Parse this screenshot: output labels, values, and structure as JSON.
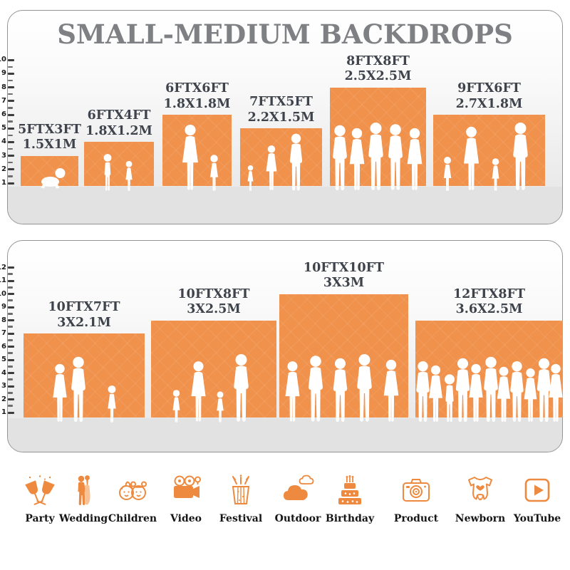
{
  "title": "SMALL-MEDIUM BACKDROPS",
  "colors": {
    "backdrop_orange": "#F0914C",
    "icon_orange": "#ED8A3F",
    "title_gray": "#7E8083",
    "label_text": "#3F434B",
    "floor_gray": "#E2E2E2",
    "panel_border": "#949494",
    "silhouette_white": "#FFFFFF",
    "icon_label_black": "#151515"
  },
  "chart_data": [
    {
      "type": "bar",
      "panel": "small-backdrops-top",
      "title": "SMALL-MEDIUM BACKDROPS",
      "ylabel": "feet ruler",
      "ylim": [
        1,
        10
      ],
      "ruler": [
        1,
        2,
        3,
        4,
        5,
        6,
        7,
        8,
        9,
        10
      ],
      "bars": [
        {
          "size_ft": "5FTX3FT",
          "size_m": "1.5X1M",
          "width_ft": 5,
          "height_ft": 3,
          "people": "crawling baby"
        },
        {
          "size_ft": "6FTX4FT",
          "size_m": "1.8X1.2M",
          "width_ft": 6,
          "height_ft": 4,
          "people": "two children"
        },
        {
          "size_ft": "6FTX6FT",
          "size_m": "1.8X1.8M",
          "width_ft": 6,
          "height_ft": 6,
          "people": "mother with child and girl"
        },
        {
          "size_ft": "7FTX5FT",
          "size_m": "2.2X1.5M",
          "width_ft": 7,
          "height_ft": 5,
          "people": "family of three"
        },
        {
          "size_ft": "8FTX8FT",
          "size_m": "2.5X2.5M",
          "width_ft": 8,
          "height_ft": 8,
          "people": "group of five adults"
        },
        {
          "size_ft": "9FTX6FT",
          "size_m": "2.7X1.8M",
          "width_ft": 9,
          "height_ft": 6,
          "people": "family of four walking"
        }
      ]
    },
    {
      "type": "bar",
      "panel": "medium-backdrops-bottom",
      "ylabel": "feet ruler",
      "ylim": [
        1,
        12
      ],
      "ruler": [
        1,
        2,
        3,
        4,
        5,
        6,
        7,
        8,
        9,
        10,
        11,
        12
      ],
      "bars": [
        {
          "size_ft": "10FTX7FT",
          "size_m": "3X2.1M",
          "width_ft": 10,
          "height_ft": 7,
          "people": "couple with girl"
        },
        {
          "size_ft": "10FTX8FT",
          "size_m": "3X2.5M",
          "width_ft": 10,
          "height_ft": 8,
          "people": "family of four holding hands"
        },
        {
          "size_ft": "10FTX10FT",
          "size_m": "3X3M",
          "width_ft": 10,
          "height_ft": 10,
          "people": "group of five adults"
        },
        {
          "size_ft": "12FTX8FT",
          "size_m": "3.6X2.5M",
          "width_ft": 12,
          "height_ft": 8,
          "people": "crowd of adults"
        }
      ]
    }
  ],
  "icons": [
    {
      "id": "party",
      "label": "Party"
    },
    {
      "id": "wedding",
      "label": "Wedding"
    },
    {
      "id": "children",
      "label": "Children"
    },
    {
      "id": "video",
      "label": "Video"
    },
    {
      "id": "festival",
      "label": "Festival"
    },
    {
      "id": "outdoor",
      "label": "Outdoor"
    },
    {
      "id": "birthday",
      "label": "Birthday"
    },
    {
      "id": "product",
      "label": "Product"
    },
    {
      "id": "newborn",
      "label": "Newborn"
    },
    {
      "id": "youtube",
      "label": "YouTube"
    }
  ]
}
